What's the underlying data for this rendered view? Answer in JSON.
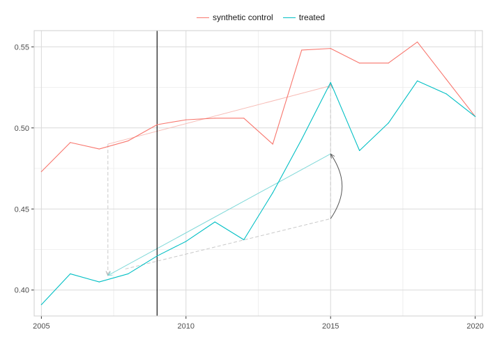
{
  "legend": {
    "items": [
      {
        "label": "synthetic control",
        "color": "#F8766D"
      },
      {
        "label": "treated",
        "color": "#00BFC4"
      }
    ]
  },
  "chart_data": {
    "type": "line",
    "title": "",
    "xlabel": "",
    "ylabel": "",
    "x": [
      2005,
      2006,
      2007,
      2008,
      2009,
      2010,
      2011,
      2012,
      2013,
      2014,
      2015,
      2016,
      2017,
      2018,
      2019,
      2020
    ],
    "series": [
      {
        "name": "synthetic control",
        "color": "#F8766D",
        "values": [
          0.473,
          0.491,
          0.487,
          0.492,
          0.502,
          0.505,
          0.506,
          0.506,
          0.49,
          0.548,
          0.549,
          0.54,
          0.54,
          0.553,
          0.53,
          0.507
        ]
      },
      {
        "name": "treated",
        "color": "#00BFC4",
        "values": [
          0.391,
          0.41,
          0.405,
          0.41,
          0.421,
          0.43,
          0.442,
          0.431,
          0.46,
          0.493,
          0.528,
          0.486,
          0.503,
          0.529,
          0.521,
          0.507
        ]
      }
    ],
    "xlim": [
      2004.75,
      2020.25
    ],
    "ylim": [
      0.384,
      0.56
    ],
    "xticks": [
      2005,
      2010,
      2015,
      2020
    ],
    "xtick_labels": [
      "2005",
      "2010",
      "2015",
      "2020"
    ],
    "yticks": [
      0.4,
      0.45,
      0.5,
      0.55
    ],
    "ytick_labels": [
      "0.40",
      "0.45",
      "0.50",
      "0.55"
    ],
    "intervention_year": 2009,
    "trend_lines": [
      {
        "series": "synthetic control",
        "from": [
          2007.3,
          0.49
        ],
        "to": [
          2015,
          0.526
        ]
      },
      {
        "series": "treated",
        "from": [
          2007.3,
          0.409
        ],
        "to": [
          2015,
          0.484
        ]
      }
    ],
    "dashed_lines": [
      {
        "from": [
          2007.3,
          0.49
        ],
        "to": [
          2007.3,
          0.409
        ]
      },
      {
        "from": [
          2007.9,
          0.413
        ],
        "to": [
          2015,
          0.444
        ]
      },
      {
        "from": [
          2015,
          0.444
        ],
        "to": [
          2015,
          0.527
        ]
      }
    ],
    "curved_arrow": {
      "from": [
        2015,
        0.444
      ],
      "to": [
        2015,
        0.484
      ]
    },
    "grid": true,
    "legend_position": "top"
  }
}
